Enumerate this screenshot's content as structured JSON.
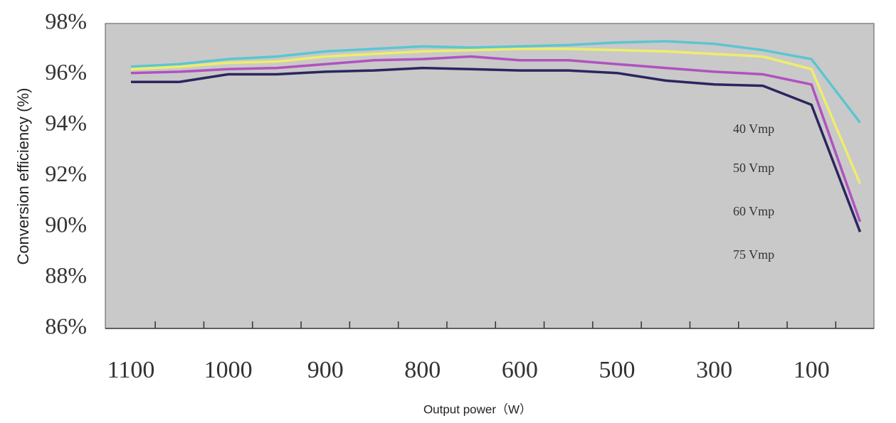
{
  "chart_data": {
    "type": "line",
    "ylabel": "Conversion efficiency (%)",
    "xlabel": "Output power（W）",
    "categories": [
      "1100",
      null,
      "1000",
      null,
      "900",
      null,
      "800",
      null,
      "600",
      null,
      "500",
      null,
      "300",
      null,
      "100",
      null
    ],
    "series": [
      {
        "name": "40 Vmp",
        "color": "#5cc6cf",
        "values": [
          96.3,
          96.4,
          96.6,
          96.7,
          96.9,
          97.0,
          97.1,
          97.05,
          97.1,
          97.15,
          97.25,
          97.3,
          97.2,
          96.95,
          96.6,
          94.1
        ]
      },
      {
        "name": "50 Vmp",
        "color": "#eeed6c",
        "values": [
          96.2,
          96.3,
          96.45,
          96.5,
          96.7,
          96.8,
          96.9,
          96.95,
          97.0,
          97.0,
          96.95,
          96.9,
          96.8,
          96.7,
          96.2,
          91.7
        ]
      },
      {
        "name": "60 Vmp",
        "color": "#b052c0",
        "values": [
          96.05,
          96.1,
          96.2,
          96.25,
          96.4,
          96.55,
          96.6,
          96.7,
          96.55,
          96.55,
          96.4,
          96.25,
          96.1,
          96.0,
          95.6,
          90.2
        ]
      },
      {
        "name": "75 Vmp",
        "color": "#2b2660",
        "values": [
          95.7,
          95.7,
          96.0,
          96.0,
          96.1,
          96.15,
          96.25,
          96.2,
          96.15,
          96.15,
          96.05,
          95.75,
          95.6,
          95.55,
          94.8,
          89.8
        ]
      }
    ],
    "ylim": [
      86,
      98
    ],
    "yticks": [
      {
        "value": 98,
        "label": "98%"
      },
      {
        "value": 96,
        "label": "96%"
      },
      {
        "value": 94,
        "label": "94%"
      },
      {
        "value": 92,
        "label": "92%"
      },
      {
        "value": 90,
        "label": "90%"
      },
      {
        "value": 88,
        "label": "88%"
      },
      {
        "value": 86,
        "label": "86%"
      }
    ],
    "grid": false,
    "background": "#c9c9c9"
  }
}
